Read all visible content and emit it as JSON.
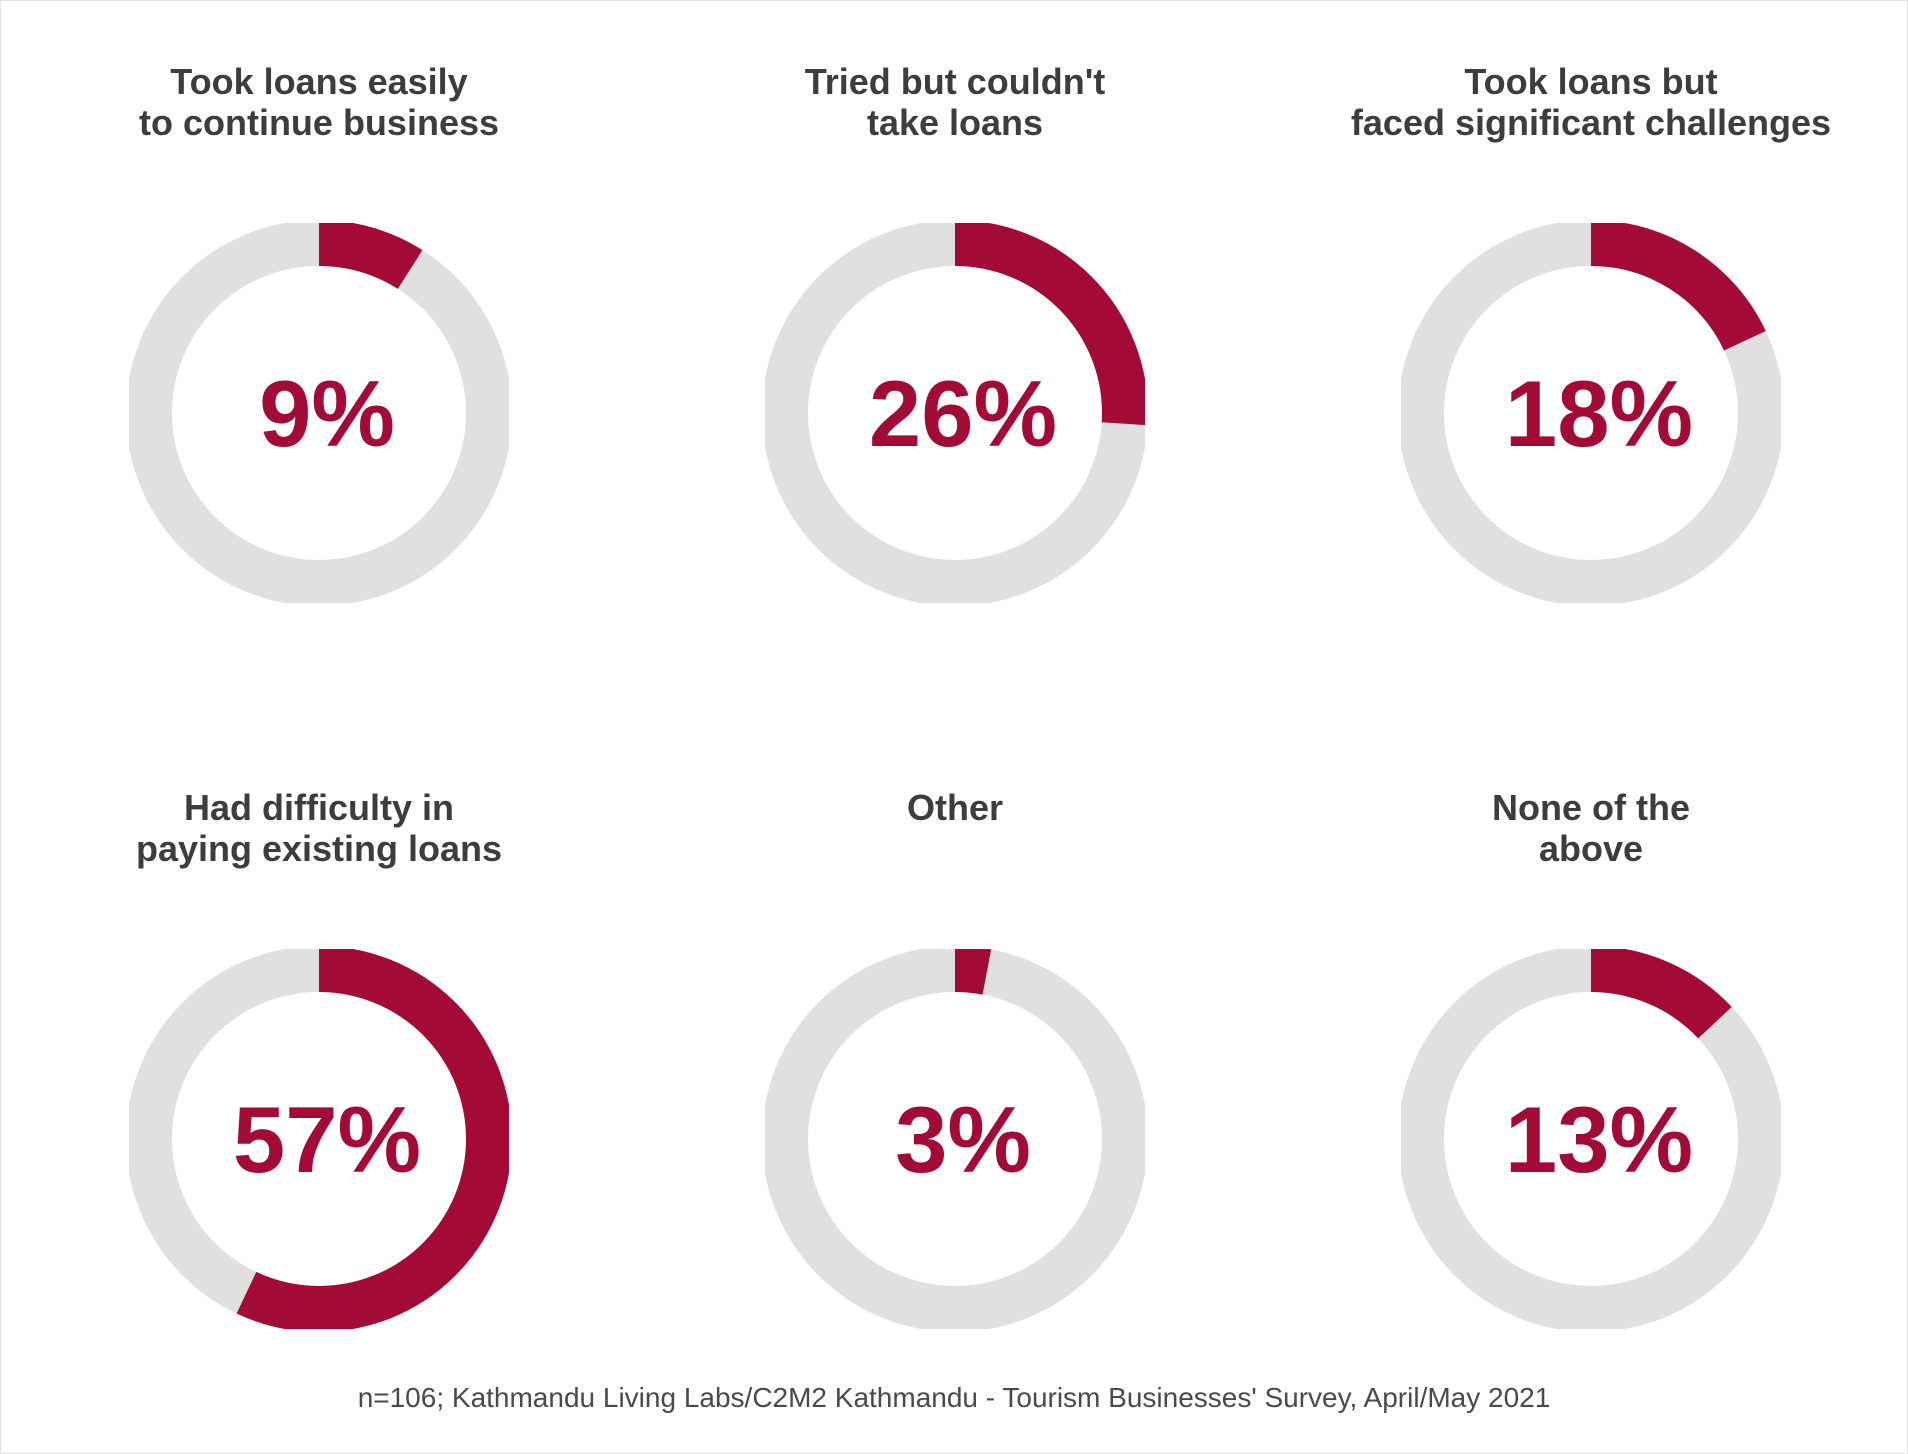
{
  "colors": {
    "accent": "#a30b36",
    "track": "#e0e0e0",
    "title": "#3d3d3d"
  },
  "chart_data": {
    "type": "donut-grid",
    "units": "%",
    "panels": [
      {
        "label": "Took loans easily\nto continue business",
        "value": 9,
        "value_label": "9%"
      },
      {
        "label": "Tried but couldn't\ntake loans",
        "value": 26,
        "value_label": "26%"
      },
      {
        "label": "Took loans but\nfaced significant challenges",
        "value": 18,
        "value_label": "18%"
      },
      {
        "label": "Had difficulty in\npaying existing loans",
        "value": 57,
        "value_label": "57%"
      },
      {
        "label": "Other",
        "value": 3,
        "value_label": "3%"
      },
      {
        "label": "None of the\nabove",
        "value": 13,
        "value_label": "13%"
      }
    ]
  },
  "footer": {
    "source": "n=106; Kathmandu Living Labs/C2M2 Kathmandu - Tourism Businesses' Survey, April/May 2021"
  }
}
